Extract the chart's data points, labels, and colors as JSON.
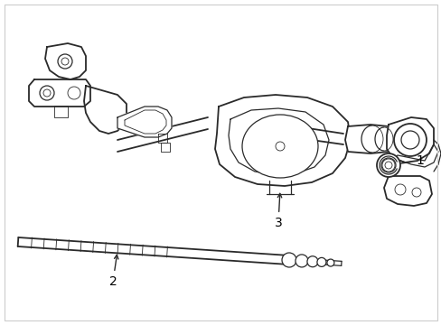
{
  "bg_color": "#ffffff",
  "line_color": "#2a2a2a",
  "label_color": "#000000",
  "border_color": "#cccccc",
  "lw_main": 1.3,
  "lw_med": 0.9,
  "lw_thin": 0.6,
  "figsize": [
    4.89,
    3.6
  ],
  "dpi": 100
}
